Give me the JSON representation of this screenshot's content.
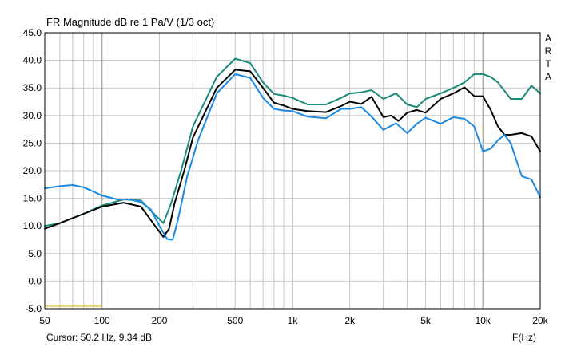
{
  "title": "FR Magnitude dB re 1 Pa/V (1/3 oct)",
  "cursor_readout": "Cursor: 50.2 Hz, 9.34 dB",
  "x_unit_label": "F(Hz)",
  "watermark": [
    "A",
    "R",
    "T",
    "A"
  ],
  "colors": {
    "background": "#ffffff",
    "grid": "#c8c8c8",
    "frame": "#000000",
    "series_teal": "#1a8a7a",
    "series_black": "#000000",
    "series_blue": "#1a8ae6",
    "cursor_marker": "#c8b400"
  },
  "chart_data": {
    "type": "line",
    "x_scale": "log",
    "xlim": [
      50,
      20000
    ],
    "ylim": [
      -5,
      45
    ],
    "x_ticks": [
      50,
      100,
      200,
      500,
      1000,
      2000,
      5000,
      10000,
      20000
    ],
    "x_tick_labels": [
      "50",
      "100",
      "200",
      "500",
      "1k",
      "2k",
      "5k",
      "10k",
      "20k"
    ],
    "y_ticks": [
      -5,
      0,
      5,
      10,
      15,
      20,
      25,
      30,
      35,
      40,
      45
    ],
    "y_tick_labels": [
      "-5.0",
      "0.0",
      "5.0",
      "10.0",
      "15.0",
      "20.0",
      "25.0",
      "30.0",
      "35.0",
      "40.0",
      "45.0"
    ],
    "grid": true,
    "cursor_marker": {
      "x": [
        50,
        100
      ],
      "y": -4.5
    },
    "series": [
      {
        "color": "#1a8a7a",
        "x": [
          50,
          60,
          80,
          100,
          130,
          160,
          190,
          210,
          230,
          260,
          300,
          400,
          500,
          600,
          700,
          800,
          900,
          1000,
          1200,
          1500,
          1800,
          2000,
          2300,
          2600,
          3000,
          3500,
          4000,
          4500,
          5000,
          6000,
          7000,
          8000,
          9000,
          10000,
          11000,
          12000,
          14000,
          16000,
          18000,
          20000
        ],
        "y": [
          10,
          10.5,
          12.2,
          13.7,
          14.8,
          14.6,
          12,
          10.5,
          14,
          20,
          28,
          37,
          40.3,
          39.5,
          36,
          33.9,
          33.6,
          33.2,
          32,
          32,
          33.2,
          34,
          34.2,
          34.6,
          33,
          34,
          32,
          31.5,
          33,
          34,
          35,
          36,
          37.5,
          37.5,
          37,
          36,
          33,
          33,
          35.4,
          34
        ]
      },
      {
        "color": "#000000",
        "x": [
          50,
          60,
          80,
          100,
          130,
          160,
          190,
          210,
          225,
          240,
          270,
          300,
          400,
          500,
          600,
          700,
          800,
          900,
          1000,
          1200,
          1500,
          1800,
          2000,
          2300,
          2600,
          3000,
          3300,
          3600,
          4000,
          4500,
          5000,
          6000,
          7000,
          8000,
          9000,
          10000,
          11000,
          12000,
          13000,
          14000,
          16000,
          18000,
          20000
        ],
        "y": [
          9.5,
          10.5,
          12.2,
          13.5,
          14.2,
          13.5,
          10,
          8,
          9.5,
          14,
          20,
          26,
          35,
          38.3,
          38,
          35,
          32.3,
          31.8,
          31.2,
          30.8,
          30.6,
          31.7,
          32.5,
          32.1,
          33.4,
          29.7,
          30,
          29,
          30.5,
          31,
          30.5,
          33,
          34,
          35.1,
          33.5,
          33.5,
          31,
          28,
          26.5,
          26.5,
          26.8,
          26.2,
          23.5
        ]
      },
      {
        "color": "#1a8ae6",
        "x": [
          50,
          60,
          70,
          80,
          100,
          120,
          140,
          160,
          180,
          200,
          220,
          235,
          250,
          280,
          320,
          400,
          500,
          600,
          700,
          800,
          900,
          1000,
          1200,
          1500,
          1800,
          2000,
          2300,
          2600,
          3000,
          3500,
          4000,
          4500,
          5000,
          6000,
          7000,
          8000,
          9000,
          10000,
          11000,
          12000,
          13000,
          14000,
          16000,
          18000,
          20000
        ],
        "y": [
          16.8,
          17.2,
          17.4,
          17.0,
          15.5,
          14.8,
          14.8,
          14.3,
          13,
          10,
          7.6,
          7.5,
          11,
          19,
          25.6,
          34,
          37.5,
          36.8,
          33.2,
          31.2,
          30.9,
          30.8,
          29.8,
          29.5,
          31.2,
          31.2,
          31.5,
          29.8,
          27.4,
          28.6,
          26.8,
          28.5,
          29.6,
          28.5,
          29.7,
          29.4,
          28,
          23.5,
          24,
          25.5,
          26.5,
          25,
          19,
          18.4,
          15.2
        ]
      }
    ]
  }
}
